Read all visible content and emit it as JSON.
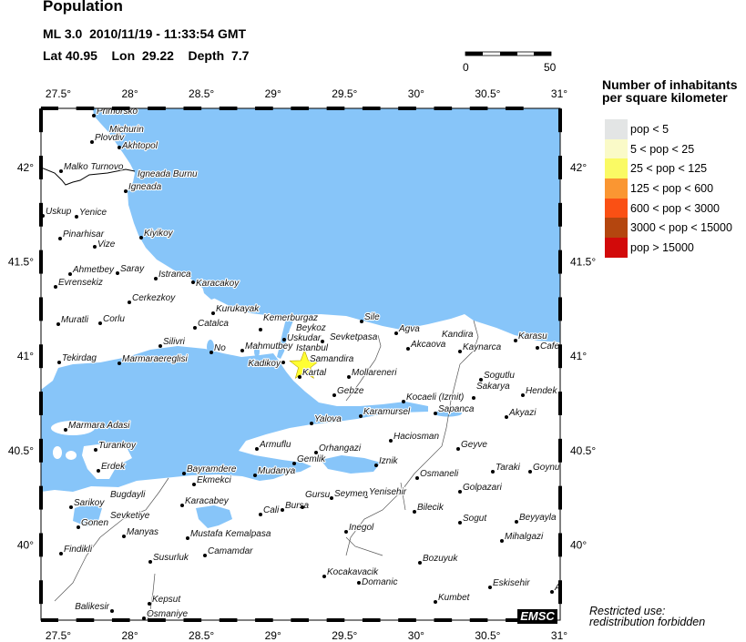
{
  "header": {
    "title": "Population",
    "event_line": "ML 3.0  2010/11/19 - 11:33:54 GMT",
    "location_line": "Lat 40.95    Lon  29.22    Depth  7.7"
  },
  "scale_bar": {
    "min_label": "0",
    "max_label": "50"
  },
  "map": {
    "lon_ticks": [
      "27.5°",
      "28°",
      "28.5°",
      "29°",
      "29.5°",
      "30°",
      "30.5°",
      "31°"
    ],
    "lat_ticks": [
      "42°",
      "41.5°",
      "41°",
      "40.5°",
      "40°"
    ],
    "epicenter_icon": "star-icon",
    "epicenter_color": "#ffff33",
    "sea_color": "#87c5f9",
    "cities": [
      {
        "name": "Primorsko"
      },
      {
        "name": "Michurin"
      },
      {
        "name": "Plovdiv"
      },
      {
        "name": "Akhtopol"
      },
      {
        "name": "Malko Turnovo"
      },
      {
        "name": "Igneada"
      },
      {
        "name": "Igneada Burnu"
      },
      {
        "name": "Uskup"
      },
      {
        "name": "Yenice"
      },
      {
        "name": "Pinarhisar"
      },
      {
        "name": "Vize"
      },
      {
        "name": "Kiyikoy"
      },
      {
        "name": "Ahmetbey"
      },
      {
        "name": "Saray"
      },
      {
        "name": "Evrensekiz"
      },
      {
        "name": "Istranca"
      },
      {
        "name": "Karacakoy"
      },
      {
        "name": "Cerkezkoy"
      },
      {
        "name": "Kurukayak"
      },
      {
        "name": "Muratli"
      },
      {
        "name": "Corlu"
      },
      {
        "name": "Catalca"
      },
      {
        "name": "Kemerburgaz"
      },
      {
        "name": "Beykoz"
      },
      {
        "name": "Uskudar"
      },
      {
        "name": "Istanbul"
      },
      {
        "name": "Sevketpasa"
      },
      {
        "name": "Sile"
      },
      {
        "name": "Agva"
      },
      {
        "name": "Silivri"
      },
      {
        "name": "No"
      },
      {
        "name": "Mahmutbey"
      },
      {
        "name": "Samandira"
      },
      {
        "name": "Kadikoy"
      },
      {
        "name": "Kartal"
      },
      {
        "name": "Mollareneri"
      },
      {
        "name": "Tekirdag"
      },
      {
        "name": "Marmaraereglisi"
      },
      {
        "name": "Gebze"
      },
      {
        "name": "Kocaeli (Izmit)"
      },
      {
        "name": "Karamursel"
      },
      {
        "name": "Yalova"
      },
      {
        "name": "Sapanca"
      },
      {
        "name": "Akcaova"
      },
      {
        "name": "Kandira"
      },
      {
        "name": "Kaynarca"
      },
      {
        "name": "Karasu"
      },
      {
        "name": "Cafe"
      },
      {
        "name": "Sogutlu"
      },
      {
        "name": "Sakarya"
      },
      {
        "name": "Hendek"
      },
      {
        "name": "Akyazi"
      },
      {
        "name": "Haciosman"
      },
      {
        "name": "Geyve"
      },
      {
        "name": "Osmaneli"
      },
      {
        "name": "Taraki"
      },
      {
        "name": "Goynuk"
      },
      {
        "name": "Golpazari"
      },
      {
        "name": "Yenisehir"
      },
      {
        "name": "Seymen"
      },
      {
        "name": "Bilecik"
      },
      {
        "name": "Sogut"
      },
      {
        "name": "Beyyayla"
      },
      {
        "name": "Mihalgazi"
      },
      {
        "name": "Inegol"
      },
      {
        "name": "Bozuyuk"
      },
      {
        "name": "Kocakavacik"
      },
      {
        "name": "Domanic"
      },
      {
        "name": "Kumbet"
      },
      {
        "name": "Eskisehir"
      },
      {
        "name": "A"
      },
      {
        "name": "Marmara Adasi"
      },
      {
        "name": "Turankoy"
      },
      {
        "name": "Erdek"
      },
      {
        "name": "Bayramdere"
      },
      {
        "name": "Ekmekci"
      },
      {
        "name": "Armuflu"
      },
      {
        "name": "Orhangazi"
      },
      {
        "name": "Gemlik"
      },
      {
        "name": "Mudanya"
      },
      {
        "name": "Iznik"
      },
      {
        "name": "Sarikoy"
      },
      {
        "name": "Bugdayli"
      },
      {
        "name": "Sevketiye"
      },
      {
        "name": "Gonen"
      },
      {
        "name": "Manyas"
      },
      {
        "name": "Karacabey"
      },
      {
        "name": "Findikli"
      },
      {
        "name": "Cali"
      },
      {
        "name": "Bursa"
      },
      {
        "name": "Gursu"
      },
      {
        "name": "Mustafa Kemalpasa"
      },
      {
        "name": "Camamdar"
      },
      {
        "name": "Susurluk"
      },
      {
        "name": "Kepsut"
      },
      {
        "name": "Balikesir"
      },
      {
        "name": "Osmaniye"
      }
    ]
  },
  "legend": {
    "title_line1": "Number of inhabitants",
    "title_line2": "per square kilometer",
    "items": [
      {
        "label": "pop < 5",
        "color": "#e3e5e5"
      },
      {
        "label": "5 < pop < 25",
        "color": "#fafac8"
      },
      {
        "label": "25 < pop < 125",
        "color": "#fafa64"
      },
      {
        "label": "125 < pop < 600",
        "color": "#fa9632"
      },
      {
        "label": "600 < pop < 3000",
        "color": "#fa5014"
      },
      {
        "label": "3000 < pop < 15000",
        "color": "#b4460f"
      },
      {
        "label": "pop > 15000",
        "color": "#d20a0a"
      }
    ]
  },
  "footer": {
    "logo": "EMSC",
    "restriction_line1": "Restricted use:",
    "restriction_line2": "redistribution forbidden"
  }
}
